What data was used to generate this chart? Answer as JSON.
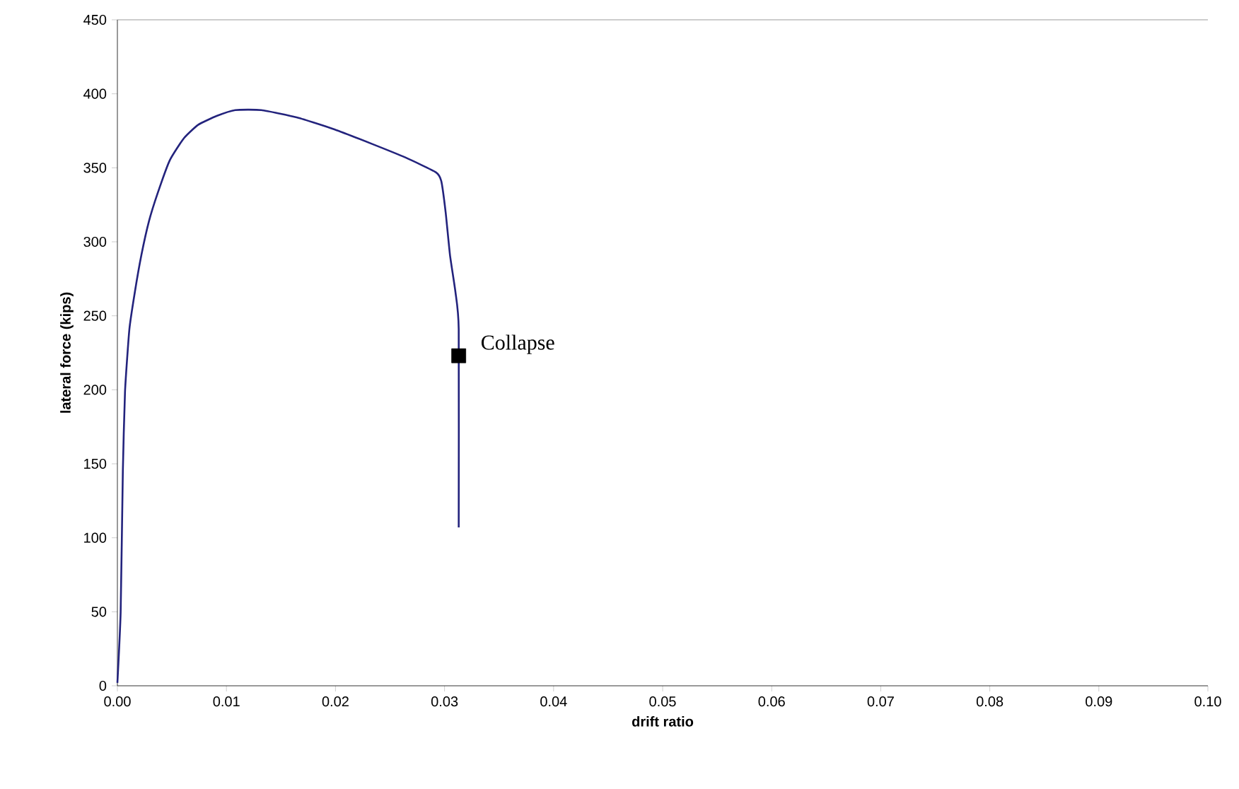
{
  "chart_data": {
    "type": "line",
    "xlabel": "drift ratio",
    "ylabel": "lateral force (kips)",
    "series": [
      {
        "color": "#23237d",
        "x": [
          0,
          0.0003,
          0.0005,
          0.0007,
          0.0011,
          0.0016,
          0.0022,
          0.0029,
          0.0037,
          0.0048,
          0.0061,
          0.0074,
          0.0091,
          0.0108,
          0.0132,
          0.0165,
          0.0199,
          0.0234,
          0.0264,
          0.0292,
          0.0297,
          0.0301,
          0.0305,
          0.031,
          0.0313,
          0.0313
        ],
        "values": [
          2,
          50,
          145,
          199,
          241,
          266,
          291,
          314,
          333,
          355,
          370,
          379,
          385,
          389,
          389,
          384,
          376,
          366,
          357,
          347,
          341,
          320,
          291,
          266,
          241,
          107
        ]
      },
      {
        "type": "scatter",
        "color": "#000000",
        "marker": "square",
        "x": [
          0.0313
        ],
        "values": [
          223
        ]
      }
    ],
    "annotations": [
      {
        "text": "Collapse",
        "x": 0.0313,
        "y": 223
      }
    ],
    "xlim": [
      0,
      0.1
    ],
    "ylim": [
      0,
      450
    ],
    "xticks": [
      {
        "value": 0,
        "label": "0.00"
      },
      {
        "value": 0.01,
        "label": "0.01"
      },
      {
        "value": 0.02,
        "label": "0.02"
      },
      {
        "value": 0.03,
        "label": "0.03"
      },
      {
        "value": 0.04,
        "label": "0.04"
      },
      {
        "value": 0.05,
        "label": "0.05"
      },
      {
        "value": 0.06,
        "label": "0.06"
      },
      {
        "value": 0.07,
        "label": "0.07"
      },
      {
        "value": 0.08,
        "label": "0.08"
      },
      {
        "value": 0.09,
        "label": "0.09"
      },
      {
        "value": 0.1,
        "label": "0.10"
      }
    ],
    "yticks": [
      0,
      50,
      100,
      150,
      200,
      250,
      300,
      350,
      400,
      450
    ],
    "marker": "none"
  }
}
